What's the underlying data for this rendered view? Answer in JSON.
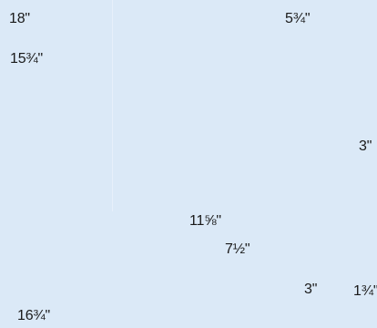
{
  "labels": {
    "top_left": "18\"",
    "top_right": "5¾\"",
    "upper_left": "15¾\"",
    "right_middle": "3\"",
    "center_upper": "11⅝\"",
    "center_lower": "7½\"",
    "bottom_right_edge": "1¾\"",
    "bottom_right": "3\"",
    "bottom_left": "16¾\""
  }
}
